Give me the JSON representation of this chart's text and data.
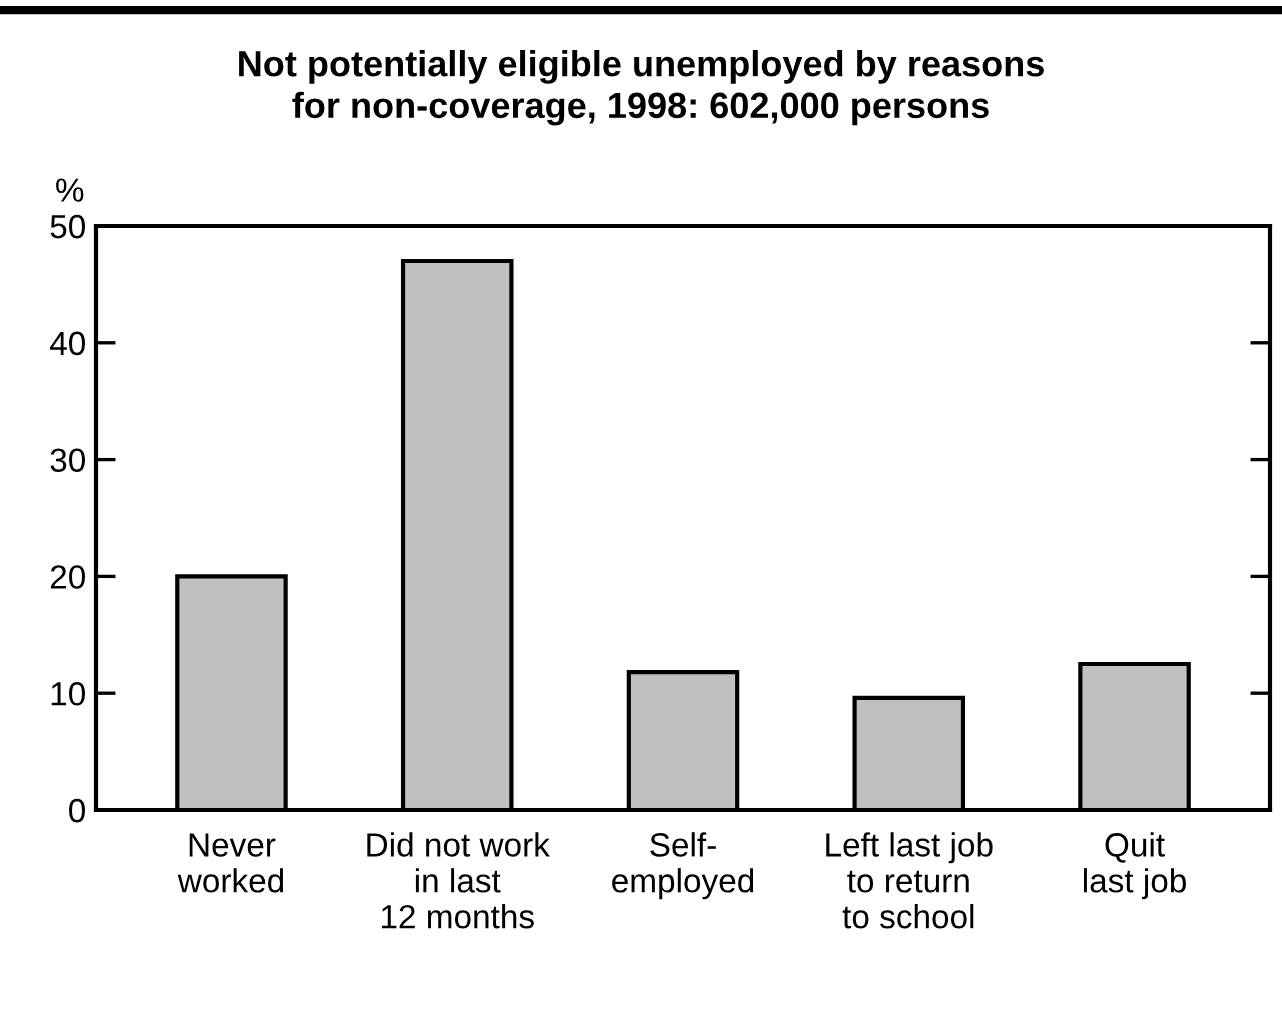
{
  "chart_data": {
    "type": "bar",
    "title": "Not potentially eligible unemployed by reasons\nfor non-coverage, 1998: 602,000 persons",
    "ylabel": "%",
    "categories": [
      "Never\nworked",
      "Did not work\nin last\n12 months",
      "Self-\nemployed",
      "Left last job\nto return\nto school",
      "Quit\nlast job"
    ],
    "values": [
      20.0,
      47.0,
      11.8,
      9.6,
      12.5
    ],
    "color": "#c0c0c0",
    "ylim": [
      0,
      50
    ],
    "yticks": [
      0,
      10,
      20,
      30,
      40,
      50
    ],
    "grid": false,
    "legend": false
  }
}
